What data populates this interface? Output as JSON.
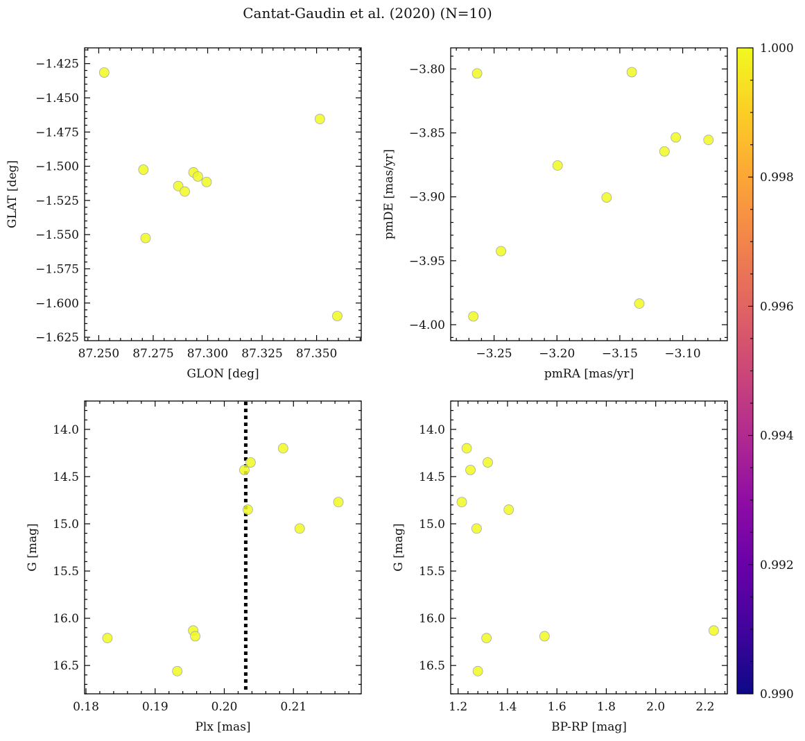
{
  "figure": {
    "title": "Cantat-Gaudin et al. (2020) (N=10)"
  },
  "chart_data": [
    {
      "type": "scatter",
      "xlabel": "GLON [deg]",
      "ylabel": "GLAT [deg]",
      "xlim": [
        87.2435,
        87.3705
      ],
      "ylim": [
        -1.6275,
        -1.4135
      ],
      "xticks": [
        87.25,
        87.275,
        87.3,
        87.325,
        87.35
      ],
      "xtick_labels": [
        "87.250",
        "87.275",
        "87.300",
        "87.325",
        "87.350"
      ],
      "yticks": [
        -1.625,
        -1.6,
        -1.575,
        -1.55,
        -1.525,
        -1.5,
        -1.475,
        -1.45,
        -1.425
      ],
      "ytick_labels": [
        "−1.625",
        "−1.600",
        "−1.575",
        "−1.550",
        "−1.525",
        "−1.500",
        "−1.475",
        "−1.450",
        "−1.425"
      ],
      "y_inverted": false,
      "points": [
        {
          "x": 87.2525,
          "y": -1.4315
        },
        {
          "x": 87.3515,
          "y": -1.4655
        },
        {
          "x": 87.2705,
          "y": -1.5025
        },
        {
          "x": 87.2935,
          "y": -1.5045
        },
        {
          "x": 87.2955,
          "y": -1.5075
        },
        {
          "x": 87.2995,
          "y": -1.5115
        },
        {
          "x": 87.2865,
          "y": -1.5145
        },
        {
          "x": 87.2895,
          "y": -1.5185
        },
        {
          "x": 87.2715,
          "y": -1.5525
        },
        {
          "x": 87.3595,
          "y": -1.6095
        }
      ]
    },
    {
      "type": "scatter",
      "xlabel": "pmRA [mas/yr]",
      "ylabel": "pmDE [mas/yr]",
      "xlim": [
        -3.2845,
        -3.0645
      ],
      "ylim": [
        -4.0125,
        -3.7835
      ],
      "xticks": [
        -3.25,
        -3.2,
        -3.15,
        -3.1
      ],
      "xtick_labels": [
        "−3.25",
        "−3.20",
        "−3.15",
        "−3.10"
      ],
      "yticks": [
        -4.0,
        -3.95,
        -3.9,
        -3.85,
        -3.8
      ],
      "ytick_labels": [
        "−4.00",
        "−3.95",
        "−3.90",
        "−3.85",
        "−3.80"
      ],
      "y_inverted": false,
      "points": [
        {
          "x": -3.2635,
          "y": -3.8035
        },
        {
          "x": -3.1405,
          "y": -3.8025
        },
        {
          "x": -3.1055,
          "y": -3.8535
        },
        {
          "x": -3.0795,
          "y": -3.8555
        },
        {
          "x": -3.1145,
          "y": -3.8645
        },
        {
          "x": -3.1995,
          "y": -3.8755
        },
        {
          "x": -3.1605,
          "y": -3.9005
        },
        {
          "x": -3.2445,
          "y": -3.9425
        },
        {
          "x": -3.1345,
          "y": -3.9835
        },
        {
          "x": -3.2665,
          "y": -3.9935
        }
      ]
    },
    {
      "type": "scatter",
      "xlabel": "Plx [mas]",
      "ylabel": "G [mag]",
      "xlim": [
        0.1798,
        0.2198
      ],
      "ylim": [
        13.7,
        16.8
      ],
      "xticks": [
        0.18,
        0.19,
        0.2,
        0.21
      ],
      "xtick_labels": [
        "0.18",
        "0.19",
        "0.20",
        "0.21"
      ],
      "yticks": [
        14.0,
        14.5,
        15.0,
        15.5,
        16.0,
        16.5
      ],
      "ytick_labels": [
        "14.0",
        "14.5",
        "15.0",
        "15.5",
        "16.0",
        "16.5"
      ],
      "y_inverted": true,
      "vline": {
        "x": 0.2031,
        "style": "dotted",
        "color": "#000000"
      },
      "points": [
        {
          "x": 0.2085,
          "y": 14.2
        },
        {
          "x": 0.2038,
          "y": 14.35
        },
        {
          "x": 0.2029,
          "y": 14.43
        },
        {
          "x": 0.2165,
          "y": 14.77
        },
        {
          "x": 0.2034,
          "y": 14.85
        },
        {
          "x": 0.2109,
          "y": 15.05
        },
        {
          "x": 0.1955,
          "y": 16.13
        },
        {
          "x": 0.1958,
          "y": 16.19
        },
        {
          "x": 0.1831,
          "y": 16.21
        },
        {
          "x": 0.1932,
          "y": 16.56
        }
      ]
    },
    {
      "type": "scatter",
      "xlabel": "BP-RP [mag]",
      "ylabel": "G [mag]",
      "xlim": [
        1.17,
        2.29
      ],
      "ylim": [
        13.7,
        16.8
      ],
      "xticks": [
        1.2,
        1.4,
        1.6,
        1.8,
        2.0,
        2.2
      ],
      "xtick_labels": [
        "1.2",
        "1.4",
        "1.6",
        "1.8",
        "2.0",
        "2.2"
      ],
      "yticks": [
        14.0,
        14.5,
        15.0,
        15.5,
        16.0,
        16.5
      ],
      "ytick_labels": [
        "14.0",
        "14.5",
        "15.0",
        "15.5",
        "16.0",
        "16.5"
      ],
      "y_inverted": true,
      "points": [
        {
          "x": 1.235,
          "y": 14.2
        },
        {
          "x": 1.32,
          "y": 14.35
        },
        {
          "x": 1.25,
          "y": 14.43
        },
        {
          "x": 1.215,
          "y": 14.77
        },
        {
          "x": 1.405,
          "y": 14.85
        },
        {
          "x": 1.275,
          "y": 15.05
        },
        {
          "x": 2.235,
          "y": 16.13
        },
        {
          "x": 1.55,
          "y": 16.19
        },
        {
          "x": 1.315,
          "y": 16.21
        },
        {
          "x": 1.28,
          "y": 16.56
        }
      ]
    }
  ],
  "colorbar": {
    "min": 0.99,
    "max": 1.0,
    "ticks": [
      0.99,
      0.992,
      0.994,
      0.996,
      0.998,
      1.0
    ],
    "tick_labels": [
      "0.990",
      "0.992",
      "0.994",
      "0.996",
      "0.998",
      "1.000"
    ],
    "colormap": "plasma"
  },
  "colors": {
    "marker_fill": "#f0f921",
    "marker_edge": "#a8a8a8",
    "axis": "#000000"
  }
}
